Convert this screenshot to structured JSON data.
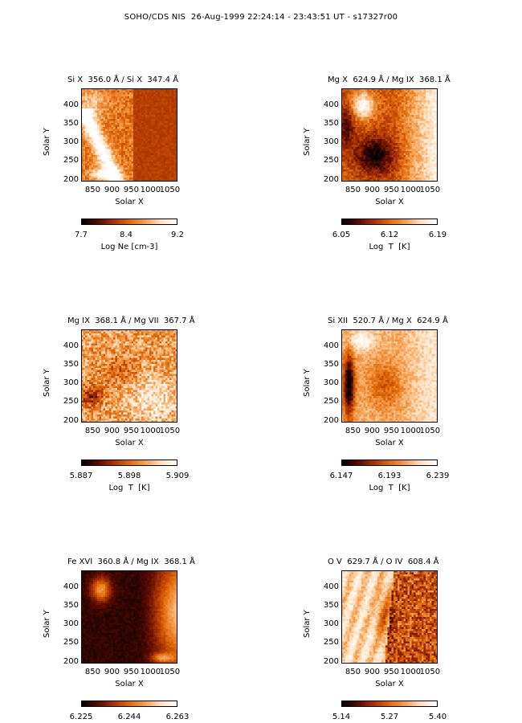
{
  "page_title": "SOHO/CDS NIS  26-Aug-1999 22:24:14 - 23:43:51 UT - s17327r00",
  "colormap": [
    "#000000",
    "#5a0a00",
    "#a83200",
    "#e0690a",
    "#f5a050",
    "#ffe0bf",
    "#ffffff"
  ],
  "chart_data": [
    {
      "type": "heatmap",
      "title": "Si X  356.0 Å / Si X  347.4 Å",
      "xlabel": "Solar X",
      "ylabel": "Solar Y",
      "xticks": [
        "850",
        "900",
        "950",
        "1000",
        "1050"
      ],
      "yticks": [
        "400",
        "350",
        "300",
        "250",
        "200"
      ],
      "xlim": [
        820,
        1070
      ],
      "ylim": [
        195,
        445
      ],
      "colorbar": {
        "ticks": [
          "7.7",
          "8.4",
          "9.2"
        ],
        "label": "Log Ne [cm-3]",
        "range": [
          7.7,
          9.2
        ]
      },
      "pattern": "bright diagonal streak in lower-left, dark speckled right side"
    },
    {
      "type": "heatmap",
      "title": "Mg X  624.9 Å / Mg IX  368.1 Å",
      "xlabel": "Solar X",
      "ylabel": "Solar Y",
      "xticks": [
        "850",
        "900",
        "950",
        "1000",
        "1050"
      ],
      "yticks": [
        "400",
        "350",
        "300",
        "250",
        "200"
      ],
      "xlim": [
        820,
        1070
      ],
      "ylim": [
        195,
        445
      ],
      "colorbar": {
        "ticks": [
          "6.05",
          "6.12",
          "6.19"
        ],
        "label": "Log  T  [K]",
        "range": [
          6.05,
          6.19
        ]
      },
      "pattern": "bright blob upper-left, bright right half, dark lower-left center"
    },
    {
      "type": "heatmap",
      "title": "Mg IX  368.1 Å / Mg VII  367.7 Å",
      "xlabel": "Solar X",
      "ylabel": "Solar Y",
      "xticks": [
        "850",
        "900",
        "950",
        "1000",
        "1050"
      ],
      "yticks": [
        "400",
        "350",
        "300",
        "250",
        "200"
      ],
      "xlim": [
        820,
        1070
      ],
      "ylim": [
        195,
        445
      ],
      "colorbar": {
        "ticks": [
          "5.887",
          "5.898",
          "5.909"
        ],
        "label": "Log  T  [K]",
        "range": [
          5.887,
          5.909
        ]
      },
      "pattern": "noisy mid-tones, brighter lower right, dark lower-left"
    },
    {
      "type": "heatmap",
      "title": "Si XII  520.7 Å / Mg X  624.9 Å",
      "xlabel": "Solar X",
      "ylabel": "Solar Y",
      "xticks": [
        "850",
        "900",
        "950",
        "1000",
        "1050"
      ],
      "yticks": [
        "400",
        "350",
        "300",
        "250",
        "200"
      ],
      "xlim": [
        820,
        1070
      ],
      "ylim": [
        195,
        445
      ],
      "colorbar": {
        "ticks": [
          "6.147",
          "6.193",
          "6.239"
        ],
        "label": "Log  T  [K]",
        "range": [
          6.147,
          6.239
        ]
      },
      "pattern": "dark vertical band on left, bright upper-left and right"
    },
    {
      "type": "heatmap",
      "title": "Fe XVI  360.8 Å / Mg IX  368.1 Å",
      "xlabel": "Solar X",
      "ylabel": "Solar Y",
      "xticks": [
        "850",
        "900",
        "950",
        "1000",
        "1050"
      ],
      "yticks": [
        "400",
        "350",
        "300",
        "250",
        "200"
      ],
      "xlim": [
        820,
        1070
      ],
      "ylim": [
        195,
        445
      ],
      "colorbar": {
        "ticks": [
          "6.225",
          "6.244",
          "6.263"
        ],
        "label": "",
        "range": [
          6.225,
          6.263
        ]
      },
      "pattern": "mostly dark, bright blob upper-left, bright right edge"
    },
    {
      "type": "heatmap",
      "title": "O V  629.7 Å / O IV  608.4 Å",
      "xlabel": "Solar X",
      "ylabel": "Solar Y",
      "xticks": [
        "850",
        "900",
        "950",
        "1000",
        "1050"
      ],
      "yticks": [
        "400",
        "350",
        "300",
        "250",
        "200"
      ],
      "xlim": [
        820,
        1070
      ],
      "ylim": [
        195,
        445
      ],
      "colorbar": {
        "ticks": [
          "5.14",
          "5.27",
          "5.40"
        ],
        "label": "",
        "range": [
          5.14,
          5.4
        ]
      },
      "pattern": "bright left half with streaks, dark speckled right half"
    }
  ]
}
